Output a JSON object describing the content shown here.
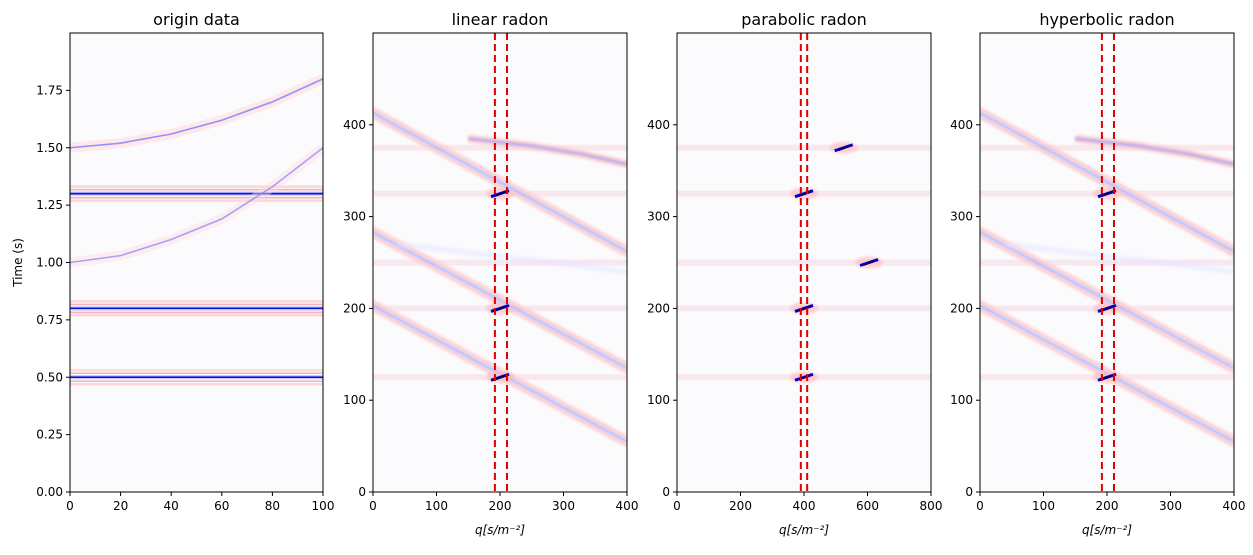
{
  "chart_data": [
    {
      "type": "heatmap",
      "title": "origin data",
      "xlabel": "",
      "ylabel": "Time (s)",
      "xlim": [
        0,
        100
      ],
      "ylim": [
        2.0,
        0.0
      ],
      "xticks": [
        "0",
        "20",
        "40",
        "60",
        "80",
        "100"
      ],
      "xtick_values": [
        0,
        20,
        40,
        60,
        80,
        100
      ],
      "yticks": [
        "0.00",
        "0.25",
        "0.50",
        "0.75",
        "1.00",
        "1.25",
        "1.50",
        "1.75"
      ],
      "ytick_values": [
        0.0,
        0.25,
        0.5,
        0.75,
        1.0,
        1.25,
        1.5,
        1.75
      ],
      "colormap": "bwr",
      "events": [
        {
          "shape": "flat",
          "t0": 0.5,
          "strength": 1.0
        },
        {
          "shape": "flat",
          "t0": 0.8,
          "strength": 1.0
        },
        {
          "shape": "flat",
          "t0": 1.3,
          "strength": 1.0
        },
        {
          "shape": "curve",
          "points": [
            [
              0,
              1.0
            ],
            [
              20,
              1.03
            ],
            [
              40,
              1.1
            ],
            [
              60,
              1.19
            ],
            [
              80,
              1.33
            ],
            [
              100,
              1.5
            ]
          ],
          "strength": 0.35
        },
        {
          "shape": "curve",
          "points": [
            [
              0,
              1.5
            ],
            [
              20,
              1.52
            ],
            [
              40,
              1.56
            ],
            [
              60,
              1.62
            ],
            [
              80,
              1.7
            ],
            [
              100,
              1.8
            ]
          ],
          "strength": 0.6
        }
      ]
    },
    {
      "type": "heatmap",
      "title": "linear radon",
      "xlabel": "q[s/m⁻²]",
      "ylabel": "",
      "xlim": [
        0,
        400
      ],
      "ylim": [
        500,
        0
      ],
      "xticks": [
        "0",
        "100",
        "200",
        "300",
        "400"
      ],
      "xtick_values": [
        0,
        100,
        200,
        300,
        400
      ],
      "yticks": [
        "0",
        "100",
        "200",
        "300",
        "400"
      ],
      "ytick_values": [
        0,
        100,
        200,
        300,
        400
      ],
      "colormap": "bwr",
      "vlines": [
        192,
        211
      ],
      "vline_color": "#e00000",
      "focus_points": [
        [
          200,
          125
        ],
        [
          200,
          200
        ],
        [
          200,
          325
        ]
      ],
      "streaks": [
        [
          0,
          203,
          400,
          55
        ],
        [
          0,
          283,
          400,
          135
        ],
        [
          0,
          413,
          400,
          262
        ]
      ],
      "faint_streaks": [
        [
          40,
          270,
          400,
          240
        ]
      ],
      "curves": [
        [
          [
            150,
            385
          ],
          [
            250,
            377
          ],
          [
            330,
            368
          ],
          [
            400,
            357
          ]
        ]
      ],
      "hlines": [
        125,
        200,
        250,
        325,
        375
      ]
    },
    {
      "type": "heatmap",
      "title": "parabolic radon",
      "xlabel": "q[s/m⁻²]",
      "ylabel": "",
      "xlim": [
        0,
        800
      ],
      "ylim": [
        500,
        0
      ],
      "xticks": [
        "0",
        "200",
        "400",
        "600",
        "800"
      ],
      "xtick_values": [
        0,
        200,
        400,
        600,
        800
      ],
      "yticks": [
        "0",
        "100",
        "200",
        "300",
        "400"
      ],
      "ytick_values": [
        0,
        100,
        200,
        300,
        400
      ],
      "colormap": "bwr",
      "vlines": [
        390,
        410
      ],
      "vline_color": "#e00000",
      "focus_points": [
        [
          400,
          125
        ],
        [
          400,
          200
        ],
        [
          400,
          325
        ],
        [
          605,
          250
        ],
        [
          525,
          375
        ]
      ],
      "streaks": [],
      "faint_streaks": [],
      "curves": [],
      "hlines": [
        125,
        200,
        250,
        325,
        375
      ]
    },
    {
      "type": "heatmap",
      "title": "hyperbolic radon",
      "xlabel": "q[s/m⁻²]",
      "ylabel": "",
      "xlim": [
        0,
        400
      ],
      "ylim": [
        500,
        0
      ],
      "xticks": [
        "0",
        "100",
        "200",
        "300",
        "400"
      ],
      "xtick_values": [
        0,
        100,
        200,
        300,
        400
      ],
      "yticks": [
        "0",
        "100",
        "200",
        "300",
        "400"
      ],
      "ytick_values": [
        0,
        100,
        200,
        300,
        400
      ],
      "colormap": "bwr",
      "vlines": [
        192,
        211
      ],
      "vline_color": "#e00000",
      "focus_points": [
        [
          200,
          125
        ],
        [
          200,
          200
        ],
        [
          200,
          325
        ]
      ],
      "streaks": [
        [
          0,
          203,
          400,
          55
        ],
        [
          0,
          283,
          400,
          135
        ],
        [
          0,
          413,
          400,
          262
        ]
      ],
      "faint_streaks": [
        [
          40,
          270,
          400,
          240
        ]
      ],
      "curves": [
        [
          [
            150,
            385
          ],
          [
            250,
            377
          ],
          [
            330,
            368
          ],
          [
            400,
            357
          ]
        ]
      ],
      "hlines": [
        125,
        200,
        250,
        325,
        375
      ]
    }
  ]
}
